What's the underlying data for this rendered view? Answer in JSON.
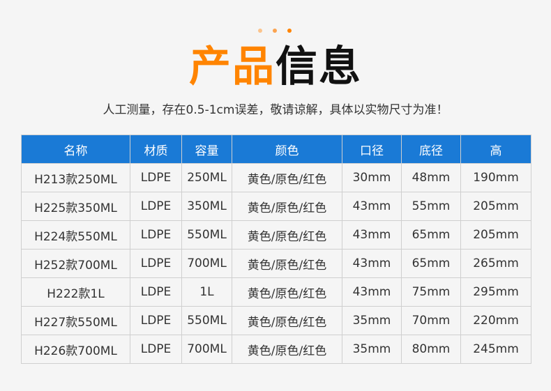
{
  "colors": {
    "accent": "#ff8400",
    "header_bg": "#1a7ad6",
    "dots": [
      "#fcc48c",
      "#fba350",
      "#ff8400"
    ]
  },
  "title": {
    "part1": "产品",
    "part2": "信息"
  },
  "subtitle": "人工测量，存在0.5-1cm误差，敬请谅解，具体以实物尺寸为准！",
  "table": {
    "headers": [
      "名称",
      "材质",
      "容量",
      "颜色",
      "口径",
      "底径",
      "高"
    ],
    "rows": [
      [
        "H213款250ML",
        "LDPE",
        "250ML",
        "黄色/原色/红色",
        "30mm",
        "48mm",
        "190mm"
      ],
      [
        "H225款350ML",
        "LDPE",
        "350ML",
        "黄色/原色/红色",
        "43mm",
        "55mm",
        "205mm"
      ],
      [
        "H224款550ML",
        "LDPE",
        "550ML",
        "黄色/原色/红色",
        "43mm",
        "65mm",
        "205mm"
      ],
      [
        "H252款700ML",
        "LDPE",
        "700ML",
        "黄色/原色/红色",
        "43mm",
        "65mm",
        "265mm"
      ],
      [
        "H222款1L",
        "LDPE",
        "1L",
        "黄色/原色/红色",
        "43mm",
        "75mm",
        "295mm"
      ],
      [
        "H227款550ML",
        "LDPE",
        "550ML",
        "黄色/原色/红色",
        "35mm",
        "70mm",
        "220mm"
      ],
      [
        "H226款700ML",
        "LDPE",
        "700ML",
        "黄色/原色/红色",
        "35mm",
        "80mm",
        "245mm"
      ]
    ]
  }
}
